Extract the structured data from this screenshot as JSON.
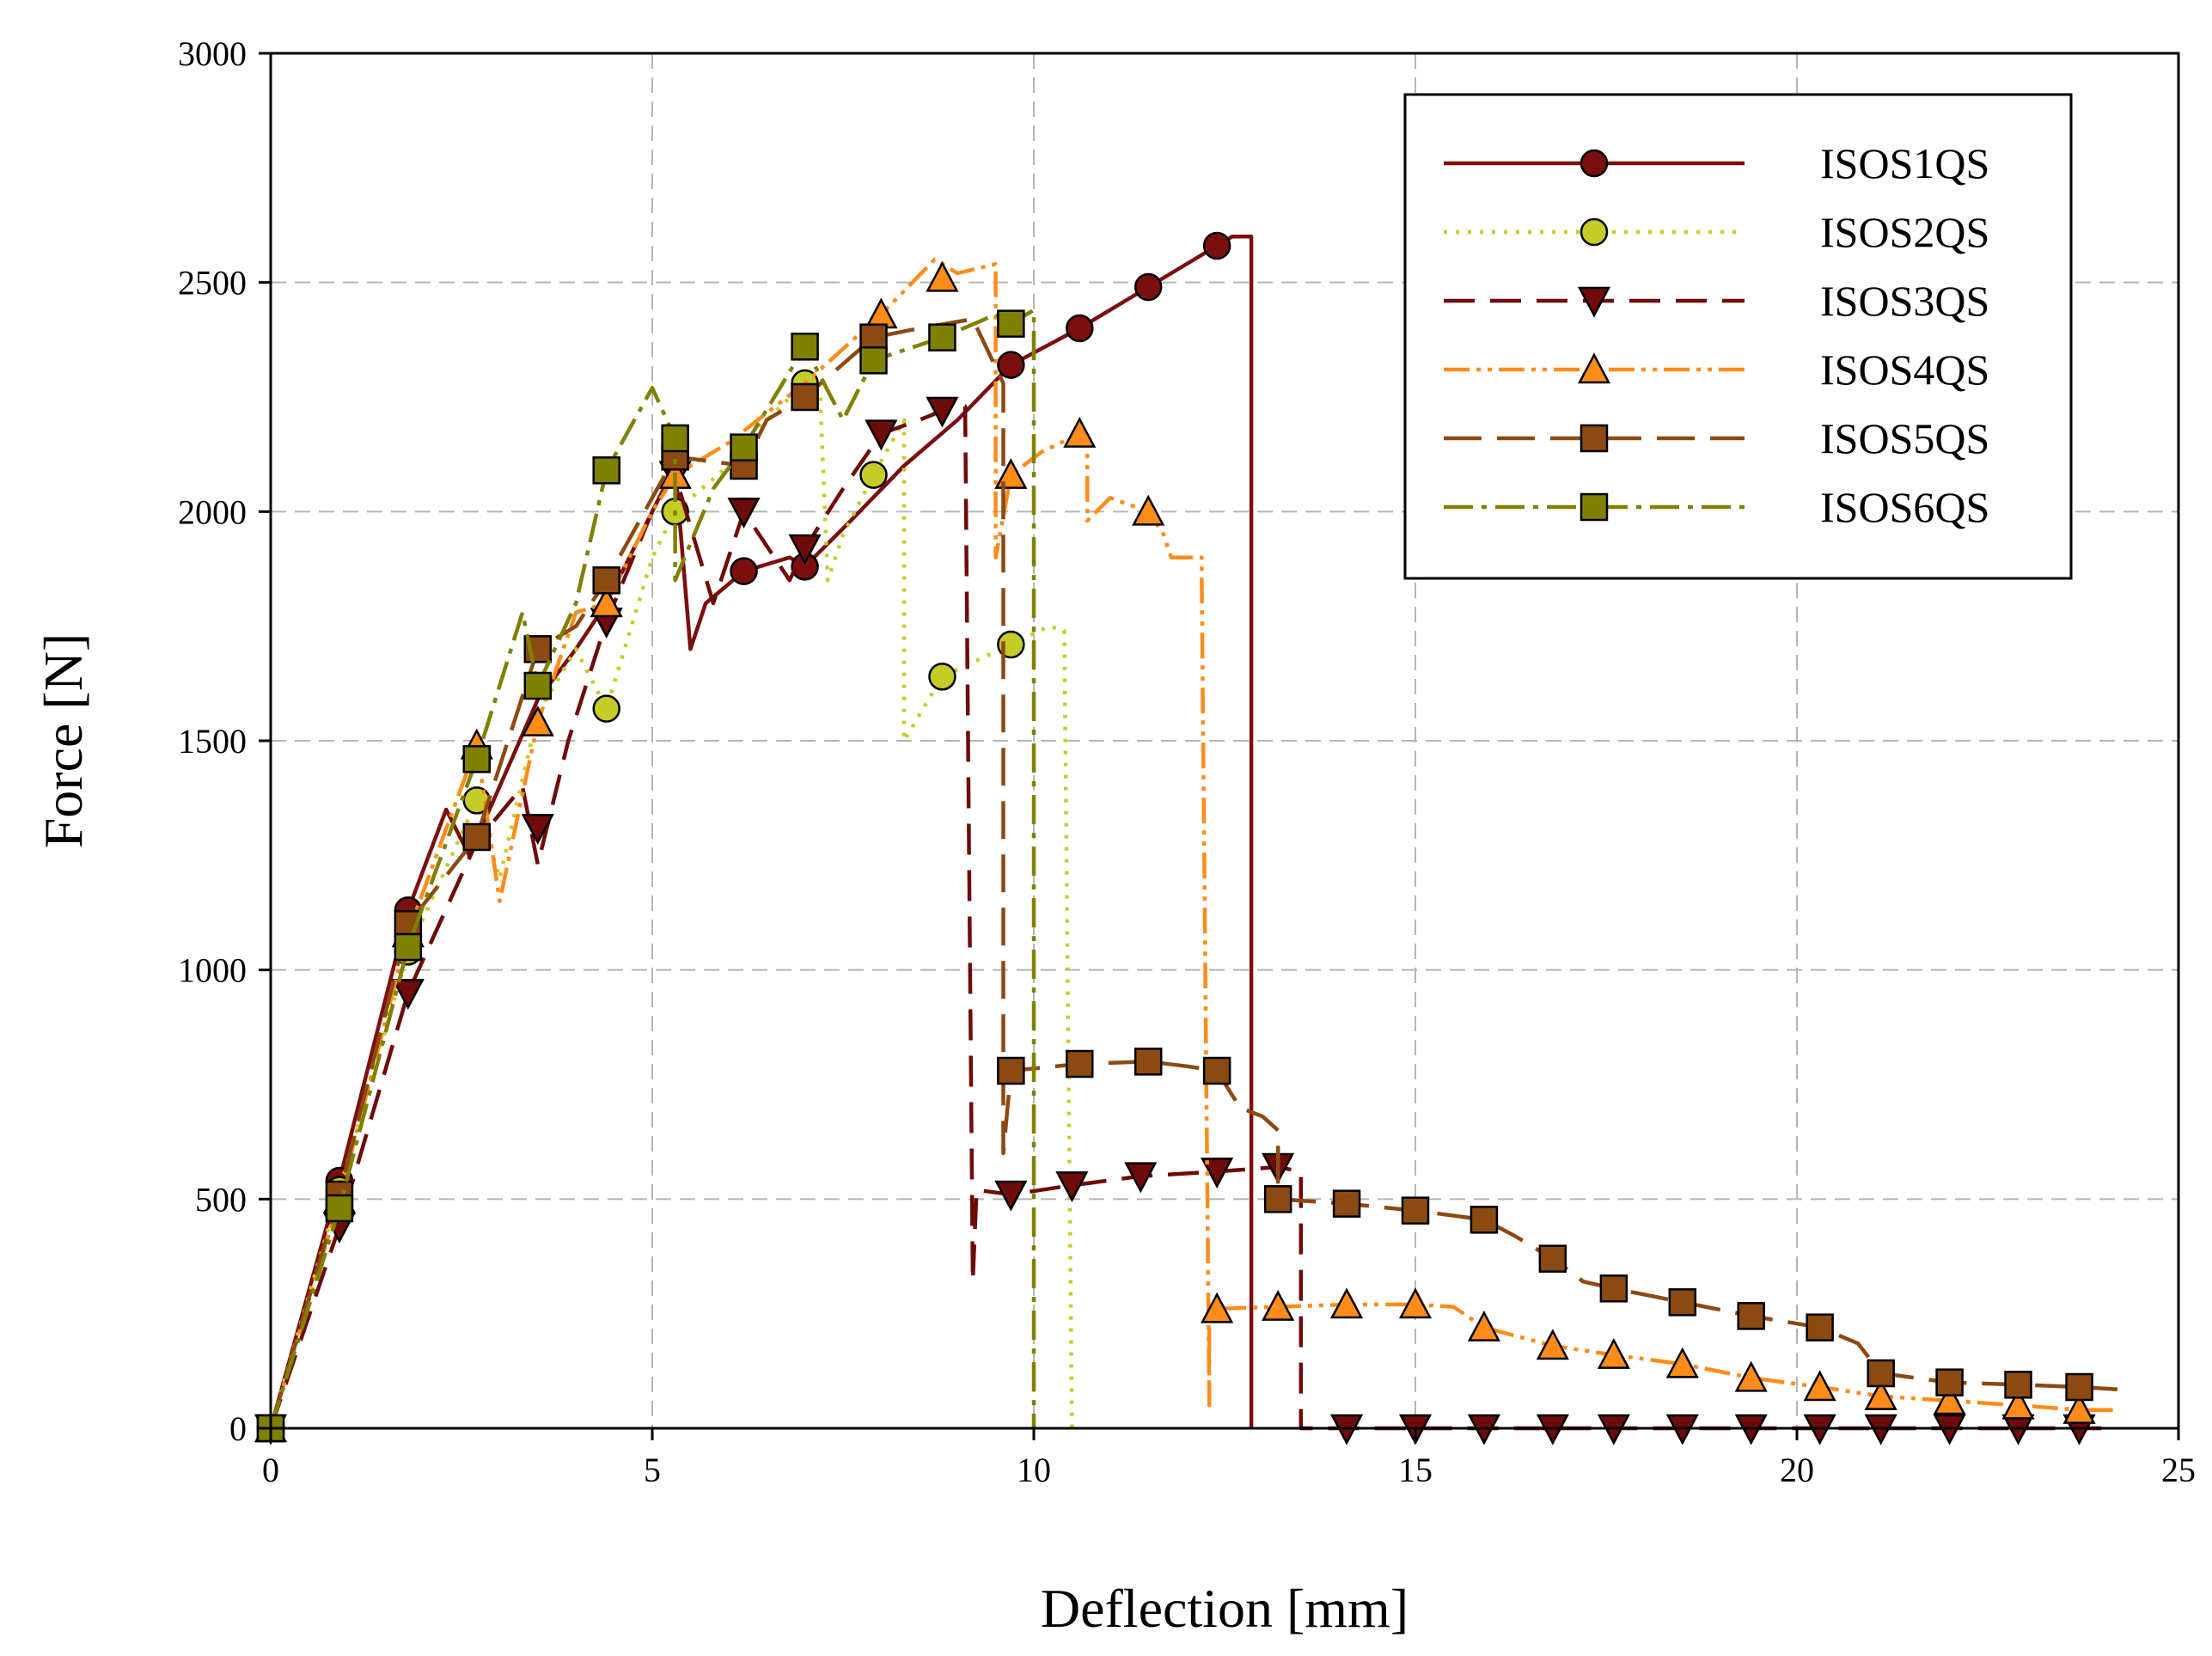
{
  "chart_data": {
    "type": "line",
    "title": "",
    "xlabel": "Deflection [mm]",
    "ylabel": "Force [N]",
    "xlim": [
      0,
      25
    ],
    "ylim": [
      0,
      3000
    ],
    "xticks": [
      0,
      5,
      10,
      15,
      20,
      25
    ],
    "yticks": [
      0,
      500,
      1000,
      1500,
      2000,
      2500,
      3000
    ],
    "grid": true,
    "legend_position": "top-right",
    "series": [
      {
        "name": "ISOS1QS",
        "color": "#7b0f0f",
        "marker": "circle",
        "marker_fill": "#7b0f0f",
        "dash": "",
        "points": [
          [
            0,
            0
          ],
          [
            0.9,
            540
          ],
          [
            1.8,
            1130
          ],
          [
            2.3,
            1350
          ],
          [
            2.6,
            1250
          ],
          [
            3.0,
            1400
          ],
          [
            3.5,
            1590
          ],
          [
            4.0,
            1700
          ],
          [
            4.4,
            1800
          ],
          [
            5.0,
            2000
          ],
          [
            5.3,
            2100
          ],
          [
            5.5,
            1700
          ],
          [
            5.7,
            1800
          ],
          [
            6.2,
            1870
          ],
          [
            6.8,
            1900
          ],
          [
            7.0,
            1880
          ],
          [
            7.6,
            1980
          ],
          [
            8.3,
            2100
          ],
          [
            9.0,
            2200
          ],
          [
            9.7,
            2320
          ],
          [
            10.6,
            2400
          ],
          [
            11.5,
            2490
          ],
          [
            12.1,
            2550
          ],
          [
            12.4,
            2580
          ],
          [
            12.6,
            2600
          ],
          [
            12.85,
            2600
          ],
          [
            12.85,
            0
          ]
        ],
        "markers": [
          [
            0,
            0
          ],
          [
            0.9,
            540
          ],
          [
            1.8,
            1130
          ],
          [
            6.2,
            1870
          ],
          [
            7.0,
            1880
          ],
          [
            9.7,
            2320
          ],
          [
            10.6,
            2400
          ],
          [
            11.5,
            2490
          ],
          [
            12.4,
            2580
          ]
        ]
      },
      {
        "name": "ISOS2QS",
        "color": "#c6cc26",
        "marker": "circle",
        "marker_fill": "#c6cc26",
        "dash": "4 10",
        "points": [
          [
            0,
            0
          ],
          [
            0.9,
            520
          ],
          [
            1.8,
            1040
          ],
          [
            2.7,
            1370
          ],
          [
            3.0,
            1200
          ],
          [
            3.5,
            1560
          ],
          [
            4.0,
            1700
          ],
          [
            4.4,
            1570
          ],
          [
            5.0,
            1900
          ],
          [
            5.3,
            2000
          ],
          [
            6.0,
            2100
          ],
          [
            6.5,
            2200
          ],
          [
            7.0,
            2280
          ],
          [
            7.2,
            2250
          ],
          [
            7.3,
            1850
          ],
          [
            7.5,
            1950
          ],
          [
            7.9,
            2080
          ],
          [
            8.3,
            2200
          ],
          [
            8.3,
            1500
          ],
          [
            8.8,
            1640
          ],
          [
            9.7,
            1710
          ],
          [
            10.2,
            1750
          ],
          [
            10.4,
            1740
          ],
          [
            10.5,
            0
          ]
        ],
        "markers": [
          [
            0,
            0
          ],
          [
            0.9,
            520
          ],
          [
            1.8,
            1040
          ],
          [
            2.7,
            1370
          ],
          [
            4.4,
            1570
          ],
          [
            5.3,
            2000
          ],
          [
            7.0,
            2280
          ],
          [
            7.9,
            2080
          ],
          [
            8.8,
            1640
          ],
          [
            9.7,
            1710
          ]
        ]
      },
      {
        "name": "ISOS3QS",
        "color": "#6e0b0b",
        "marker": "triangle-down",
        "marker_fill": "#6e0b0b",
        "dash": "36 18",
        "points": [
          [
            0,
            0
          ],
          [
            0.9,
            440
          ],
          [
            1.8,
            950
          ],
          [
            2.7,
            1280
          ],
          [
            3.3,
            1400
          ],
          [
            3.5,
            1230
          ],
          [
            3.9,
            1500
          ],
          [
            4.4,
            1760
          ],
          [
            5.0,
            2000
          ],
          [
            5.3,
            2080
          ],
          [
            5.8,
            1800
          ],
          [
            6.2,
            2000
          ],
          [
            6.8,
            1850
          ],
          [
            7.0,
            1920
          ],
          [
            7.5,
            2050
          ],
          [
            8.0,
            2170
          ],
          [
            8.5,
            2200
          ],
          [
            8.8,
            2220
          ],
          [
            9.1,
            2230
          ],
          [
            9.2,
            320
          ],
          [
            9.25,
            520
          ],
          [
            9.7,
            510
          ],
          [
            10.5,
            530
          ],
          [
            11.4,
            550
          ],
          [
            12.4,
            560
          ],
          [
            13.2,
            570
          ],
          [
            13.5,
            560
          ],
          [
            13.5,
            0
          ],
          [
            14.1,
            0
          ],
          [
            24.0,
            0
          ]
        ],
        "markers": [
          [
            0,
            0
          ],
          [
            0.9,
            440
          ],
          [
            1.8,
            950
          ],
          [
            3.5,
            1310
          ],
          [
            4.4,
            1760
          ],
          [
            5.3,
            2080
          ],
          [
            6.2,
            2000
          ],
          [
            7.0,
            1920
          ],
          [
            8.0,
            2170
          ],
          [
            8.8,
            2220
          ],
          [
            9.7,
            510
          ],
          [
            10.5,
            530
          ],
          [
            11.4,
            550
          ],
          [
            12.4,
            560
          ],
          [
            13.2,
            570
          ],
          [
            14.1,
            0
          ],
          [
            15.0,
            0
          ],
          [
            15.9,
            0
          ],
          [
            16.8,
            0
          ],
          [
            17.6,
            0
          ],
          [
            18.5,
            0
          ],
          [
            19.4,
            0
          ],
          [
            20.3,
            0
          ],
          [
            21.1,
            0
          ],
          [
            22.0,
            0
          ],
          [
            22.9,
            0
          ],
          [
            23.7,
            0
          ]
        ]
      },
      {
        "name": "ISOS4QS",
        "color": "#ff8c1a",
        "marker": "triangle-up",
        "marker_fill": "#ff8c1a",
        "dash": "30 8 5 8 5 8",
        "points": [
          [
            0,
            0
          ],
          [
            0.9,
            500
          ],
          [
            1.8,
            1080
          ],
          [
            2.7,
            1490
          ],
          [
            3.0,
            1150
          ],
          [
            3.5,
            1540
          ],
          [
            4.0,
            1780
          ],
          [
            4.4,
            1800
          ],
          [
            5.0,
            2000
          ],
          [
            5.3,
            2080
          ],
          [
            6.0,
            2150
          ],
          [
            7.0,
            2280
          ],
          [
            8.0,
            2430
          ],
          [
            8.7,
            2550
          ],
          [
            9.0,
            2520
          ],
          [
            9.5,
            2540
          ],
          [
            9.5,
            1900
          ],
          [
            9.7,
            2080
          ],
          [
            10.1,
            2130
          ],
          [
            10.6,
            2170
          ],
          [
            10.7,
            2140
          ],
          [
            10.7,
            1980
          ],
          [
            11.0,
            2030
          ],
          [
            11.5,
            2000
          ],
          [
            11.7,
            1950
          ],
          [
            11.8,
            1900
          ],
          [
            12.2,
            1900
          ],
          [
            12.2,
            1850
          ],
          [
            12.3,
            50
          ],
          [
            12.3,
            260
          ],
          [
            13.2,
            265
          ],
          [
            14.1,
            270
          ],
          [
            15.0,
            270
          ],
          [
            15.5,
            265
          ],
          [
            15.9,
            220
          ],
          [
            16.8,
            180
          ],
          [
            17.6,
            160
          ],
          [
            18.5,
            140
          ],
          [
            19.4,
            110
          ],
          [
            20.3,
            90
          ],
          [
            21.1,
            70
          ],
          [
            22.0,
            60
          ],
          [
            22.9,
            50
          ],
          [
            23.7,
            40
          ],
          [
            24.2,
            40
          ]
        ],
        "markers": [
          [
            0,
            0
          ],
          [
            0.9,
            500
          ],
          [
            1.8,
            1080
          ],
          [
            2.7,
            1490
          ],
          [
            3.5,
            1540
          ],
          [
            4.4,
            1800
          ],
          [
            5.3,
            2080
          ],
          [
            8.0,
            2430
          ],
          [
            8.8,
            2510
          ],
          [
            9.7,
            2080
          ],
          [
            10.6,
            2170
          ],
          [
            11.5,
            2000
          ],
          [
            12.4,
            260
          ],
          [
            13.2,
            265
          ],
          [
            14.1,
            270
          ],
          [
            15.0,
            270
          ],
          [
            15.9,
            220
          ],
          [
            16.8,
            180
          ],
          [
            17.6,
            160
          ],
          [
            18.5,
            140
          ],
          [
            19.4,
            110
          ],
          [
            20.3,
            90
          ],
          [
            21.1,
            70
          ],
          [
            22.0,
            60
          ],
          [
            22.9,
            50
          ],
          [
            23.7,
            40
          ]
        ]
      },
      {
        "name": "ISOS5QS",
        "color": "#8b4a12",
        "marker": "square",
        "marker_fill": "#8b4a12",
        "dash": "44 18",
        "points": [
          [
            0,
            0
          ],
          [
            0.9,
            510
          ],
          [
            1.8,
            1100
          ],
          [
            2.7,
            1290
          ],
          [
            3.5,
            1700
          ],
          [
            4.0,
            1750
          ],
          [
            4.4,
            1850
          ],
          [
            5.3,
            2120
          ],
          [
            6.2,
            2100
          ],
          [
            6.5,
            2200
          ],
          [
            7.0,
            2250
          ],
          [
            7.9,
            2380
          ],
          [
            8.5,
            2400
          ],
          [
            9.2,
            2420
          ],
          [
            9.6,
            2280
          ],
          [
            9.6,
            600
          ],
          [
            9.7,
            780
          ],
          [
            10.6,
            795
          ],
          [
            11.5,
            800
          ],
          [
            12.0,
            790
          ],
          [
            12.4,
            780
          ],
          [
            12.7,
            700
          ],
          [
            13.0,
            680
          ],
          [
            13.2,
            650
          ],
          [
            13.2,
            500
          ],
          [
            14.1,
            490
          ],
          [
            15.0,
            475
          ],
          [
            15.9,
            455
          ],
          [
            16.3,
            420
          ],
          [
            16.8,
            370
          ],
          [
            17.2,
            320
          ],
          [
            17.6,
            305
          ],
          [
            18.5,
            275
          ],
          [
            19.4,
            245
          ],
          [
            20.3,
            220
          ],
          [
            20.8,
            185
          ],
          [
            21.1,
            120
          ],
          [
            22.0,
            100
          ],
          [
            22.9,
            95
          ],
          [
            23.7,
            90
          ],
          [
            24.2,
            85
          ]
        ],
        "markers": [
          [
            0,
            0
          ],
          [
            0.9,
            510
          ],
          [
            1.8,
            1100
          ],
          [
            2.7,
            1290
          ],
          [
            3.5,
            1700
          ],
          [
            4.4,
            1850
          ],
          [
            5.3,
            2120
          ],
          [
            6.2,
            2100
          ],
          [
            7.0,
            2250
          ],
          [
            7.9,
            2380
          ],
          [
            9.7,
            780
          ],
          [
            10.6,
            795
          ],
          [
            11.5,
            800
          ],
          [
            12.4,
            780
          ],
          [
            13.2,
            500
          ],
          [
            14.1,
            490
          ],
          [
            15.0,
            475
          ],
          [
            15.9,
            455
          ],
          [
            16.8,
            370
          ],
          [
            17.6,
            305
          ],
          [
            18.5,
            275
          ],
          [
            19.4,
            245
          ],
          [
            20.3,
            220
          ],
          [
            21.1,
            120
          ],
          [
            22.0,
            100
          ],
          [
            22.9,
            95
          ],
          [
            23.7,
            90
          ]
        ]
      },
      {
        "name": "ISOS6QS",
        "color": "#808000",
        "marker": "square",
        "marker_fill": "#808000",
        "dash": "34 10 6 10",
        "points": [
          [
            0,
            0
          ],
          [
            0.9,
            480
          ],
          [
            1.8,
            1050
          ],
          [
            2.7,
            1460
          ],
          [
            3.3,
            1780
          ],
          [
            3.5,
            1620
          ],
          [
            4.0,
            1800
          ],
          [
            4.4,
            2090
          ],
          [
            5.0,
            2270
          ],
          [
            5.3,
            2160
          ],
          [
            5.3,
            1850
          ],
          [
            5.8,
            2050
          ],
          [
            6.2,
            2140
          ],
          [
            7.0,
            2360
          ],
          [
            7.5,
            2200
          ],
          [
            7.9,
            2330
          ],
          [
            8.8,
            2380
          ],
          [
            9.5,
            2430
          ],
          [
            9.7,
            2410
          ],
          [
            10.0,
            2440
          ],
          [
            10.0,
            2000
          ],
          [
            10.0,
            0
          ]
        ],
        "markers": [
          [
            0,
            0
          ],
          [
            0.9,
            480
          ],
          [
            1.8,
            1050
          ],
          [
            2.7,
            1460
          ],
          [
            3.5,
            1620
          ],
          [
            4.4,
            2090
          ],
          [
            5.3,
            2160
          ],
          [
            6.2,
            2140
          ],
          [
            7.0,
            2360
          ],
          [
            7.9,
            2330
          ],
          [
            8.8,
            2380
          ],
          [
            9.7,
            2410
          ]
        ]
      }
    ]
  }
}
